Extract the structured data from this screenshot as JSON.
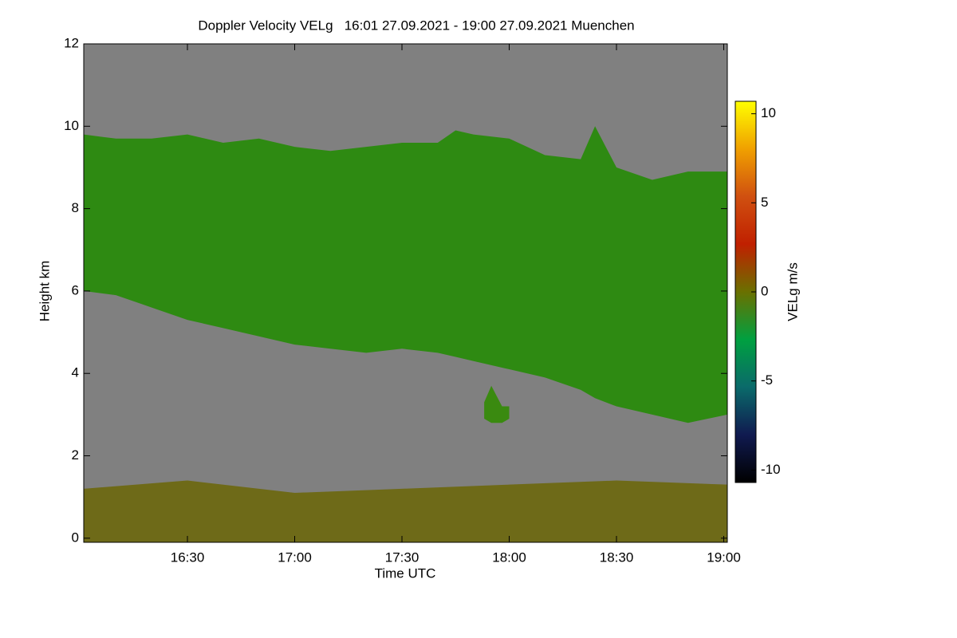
{
  "chart_data": {
    "type": "range-area",
    "title": "Doppler Velocity VELg   16:01 27.09.2021 - 19:00 27.09.2021 Muenchen",
    "x_label": "Time UTC",
    "y_label": "Height km",
    "colorbar_label": "VELg m/s",
    "background": "#808080",
    "xlim": [
      961,
      1141
    ],
    "xticks": [
      {
        "value": 990,
        "label": "16:30"
      },
      {
        "value": 1020,
        "label": "17:00"
      },
      {
        "value": 1050,
        "label": "17:30"
      },
      {
        "value": 1080,
        "label": "18:00"
      },
      {
        "value": 1110,
        "label": "18:30"
      },
      {
        "value": 1140,
        "label": "19:00"
      }
    ],
    "ylim": [
      -0.1,
      12
    ],
    "yticks": [
      0,
      2,
      4,
      6,
      8,
      10,
      12
    ],
    "clim": [
      -10.7,
      10.7
    ],
    "cticks": [
      -10,
      -5,
      0,
      5,
      10
    ],
    "colormap": [
      "#000000",
      "#101a50",
      "#0a6a6a",
      "#00a040",
      "#6a7000",
      "#c02000",
      "#d05010",
      "#f0a000",
      "#ffff00"
    ],
    "layers": [
      {
        "color": "#2e8a12",
        "x": [
          961,
          970,
          980,
          990,
          1000,
          1010,
          1020,
          1030,
          1040,
          1050,
          1060,
          1065,
          1070,
          1080,
          1090,
          1100,
          1104,
          1110,
          1120,
          1130,
          1141
        ],
        "top": [
          9.8,
          9.7,
          9.7,
          9.8,
          9.6,
          9.7,
          9.5,
          9.4,
          9.5,
          9.6,
          9.6,
          9.9,
          9.8,
          9.7,
          9.3,
          9.2,
          10.0,
          9.0,
          8.7,
          8.9,
          8.9
        ],
        "base": [
          6.0,
          5.9,
          5.6,
          5.3,
          5.1,
          4.9,
          4.7,
          4.6,
          4.5,
          4.6,
          4.5,
          4.4,
          4.3,
          4.1,
          3.9,
          3.6,
          3.4,
          3.2,
          3.0,
          2.8,
          3.0
        ]
      },
      {
        "color": "#3a8a10",
        "x": [
          1073,
          1075,
          1078,
          1080
        ],
        "top": [
          3.3,
          3.7,
          3.2,
          3.2
        ],
        "base": [
          2.9,
          2.8,
          2.8,
          2.9
        ]
      },
      {
        "color": "#6e6a18",
        "x": [
          961,
          990,
          1020,
          1050,
          1080,
          1110,
          1141
        ],
        "top": [
          1.2,
          1.4,
          1.1,
          1.2,
          1.3,
          1.4,
          1.3
        ],
        "base": [
          -0.1,
          -0.1,
          -0.1,
          -0.1,
          -0.1,
          -0.1,
          -0.1
        ]
      }
    ]
  }
}
